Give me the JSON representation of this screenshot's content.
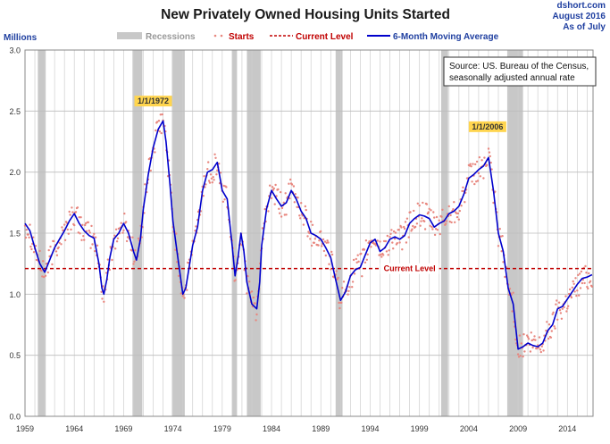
{
  "title": "New Privately Owned Housing Units Started",
  "site": "dshort.com",
  "date_line1": "August 2016",
  "date_line2": "As of July",
  "y_unit": "Millions",
  "legend": {
    "recessions": "Recessions",
    "starts": "Starts",
    "current_level": "Current Level",
    "moving_average": "6-Month Moving Average"
  },
  "source_note": {
    "line1": "Source: US. Bureau of the Census,",
    "line2": "seasonally adjusted annual rate"
  },
  "annotations": {
    "peak_1972": "1/1/1972",
    "peak_2006": "1/1/2006",
    "current_level": "Current Level"
  },
  "colors": {
    "title": "#1a1a1a",
    "accent_blue": "#1f3fa0",
    "moving_average": "#0000cc",
    "starts_dots": "#e8877f",
    "current_level": "#c00000",
    "recession_band": "#c8c8c8",
    "annotation_bg": "#ffd54f"
  },
  "chart_data": {
    "type": "line",
    "ylim": [
      0,
      3.0
    ],
    "y_ticks": [
      "0.0",
      "0.5",
      "1.0",
      "1.5",
      "2.0",
      "2.5",
      "3.0"
    ],
    "x_ticks": [
      "1959",
      "1964",
      "1969",
      "1974",
      "1979",
      "1984",
      "1989",
      "1994",
      "1999",
      "2004",
      "2009",
      "2014"
    ],
    "xlim": [
      1959.0,
      2016.6
    ],
    "grid": true,
    "current_level": 1.21,
    "recessions": [
      [
        1960.3,
        1961.1
      ],
      [
        1969.9,
        1970.9
      ],
      [
        1973.9,
        1975.2
      ],
      [
        1980.0,
        1980.5
      ],
      [
        1981.5,
        1982.9
      ],
      [
        1990.5,
        1991.2
      ],
      [
        2001.2,
        2001.9
      ],
      [
        2007.9,
        2009.5
      ]
    ],
    "series": [
      {
        "name": "6-Month Moving Average",
        "points": [
          [
            1959.0,
            1.58
          ],
          [
            1959.5,
            1.52
          ],
          [
            1960.0,
            1.38
          ],
          [
            1960.5,
            1.25
          ],
          [
            1961.0,
            1.18
          ],
          [
            1961.5,
            1.28
          ],
          [
            1962.0,
            1.38
          ],
          [
            1962.5,
            1.45
          ],
          [
            1963.0,
            1.52
          ],
          [
            1963.5,
            1.6
          ],
          [
            1964.0,
            1.66
          ],
          [
            1964.5,
            1.58
          ],
          [
            1965.0,
            1.52
          ],
          [
            1965.5,
            1.48
          ],
          [
            1966.0,
            1.46
          ],
          [
            1966.5,
            1.25
          ],
          [
            1966.8,
            1.05
          ],
          [
            1967.0,
            1.0
          ],
          [
            1967.3,
            1.12
          ],
          [
            1967.6,
            1.3
          ],
          [
            1968.0,
            1.45
          ],
          [
            1968.5,
            1.5
          ],
          [
            1969.0,
            1.58
          ],
          [
            1969.5,
            1.5
          ],
          [
            1970.0,
            1.35
          ],
          [
            1970.3,
            1.28
          ],
          [
            1970.7,
            1.45
          ],
          [
            1971.0,
            1.7
          ],
          [
            1971.5,
            1.98
          ],
          [
            1972.0,
            2.2
          ],
          [
            1972.5,
            2.35
          ],
          [
            1973.0,
            2.42
          ],
          [
            1973.3,
            2.25
          ],
          [
            1973.7,
            1.9
          ],
          [
            1974.0,
            1.6
          ],
          [
            1974.5,
            1.3
          ],
          [
            1975.0,
            1.0
          ],
          [
            1975.3,
            1.05
          ],
          [
            1975.7,
            1.25
          ],
          [
            1976.0,
            1.4
          ],
          [
            1976.5,
            1.55
          ],
          [
            1977.0,
            1.85
          ],
          [
            1977.5,
            2.0
          ],
          [
            1978.0,
            2.02
          ],
          [
            1978.5,
            2.08
          ],
          [
            1979.0,
            1.85
          ],
          [
            1979.5,
            1.78
          ],
          [
            1980.0,
            1.4
          ],
          [
            1980.3,
            1.15
          ],
          [
            1980.6,
            1.3
          ],
          [
            1980.9,
            1.5
          ],
          [
            1981.2,
            1.35
          ],
          [
            1981.5,
            1.1
          ],
          [
            1982.0,
            0.92
          ],
          [
            1982.5,
            0.88
          ],
          [
            1982.8,
            1.1
          ],
          [
            1983.0,
            1.4
          ],
          [
            1983.5,
            1.7
          ],
          [
            1984.0,
            1.85
          ],
          [
            1984.5,
            1.78
          ],
          [
            1985.0,
            1.72
          ],
          [
            1985.5,
            1.75
          ],
          [
            1986.0,
            1.85
          ],
          [
            1986.5,
            1.78
          ],
          [
            1987.0,
            1.68
          ],
          [
            1987.5,
            1.62
          ],
          [
            1988.0,
            1.5
          ],
          [
            1988.5,
            1.48
          ],
          [
            1989.0,
            1.45
          ],
          [
            1989.5,
            1.38
          ],
          [
            1990.0,
            1.3
          ],
          [
            1990.5,
            1.12
          ],
          [
            1991.0,
            0.95
          ],
          [
            1991.5,
            1.02
          ],
          [
            1992.0,
            1.15
          ],
          [
            1992.5,
            1.2
          ],
          [
            1993.0,
            1.22
          ],
          [
            1993.5,
            1.32
          ],
          [
            1994.0,
            1.42
          ],
          [
            1994.5,
            1.45
          ],
          [
            1995.0,
            1.35
          ],
          [
            1995.5,
            1.38
          ],
          [
            1996.0,
            1.45
          ],
          [
            1996.5,
            1.47
          ],
          [
            1997.0,
            1.45
          ],
          [
            1997.5,
            1.48
          ],
          [
            1998.0,
            1.58
          ],
          [
            1998.5,
            1.62
          ],
          [
            1999.0,
            1.65
          ],
          [
            1999.5,
            1.64
          ],
          [
            2000.0,
            1.62
          ],
          [
            2000.5,
            1.55
          ],
          [
            2001.0,
            1.58
          ],
          [
            2001.5,
            1.6
          ],
          [
            2002.0,
            1.66
          ],
          [
            2002.5,
            1.68
          ],
          [
            2003.0,
            1.72
          ],
          [
            2003.5,
            1.82
          ],
          [
            2004.0,
            1.95
          ],
          [
            2004.5,
            1.98
          ],
          [
            2005.0,
            2.02
          ],
          [
            2005.5,
            2.05
          ],
          [
            2006.0,
            2.12
          ],
          [
            2006.5,
            1.85
          ],
          [
            2007.0,
            1.5
          ],
          [
            2007.5,
            1.35
          ],
          [
            2008.0,
            1.05
          ],
          [
            2008.5,
            0.92
          ],
          [
            2009.0,
            0.55
          ],
          [
            2009.5,
            0.57
          ],
          [
            2010.0,
            0.6
          ],
          [
            2010.5,
            0.58
          ],
          [
            2011.0,
            0.57
          ],
          [
            2011.5,
            0.6
          ],
          [
            2012.0,
            0.7
          ],
          [
            2012.5,
            0.75
          ],
          [
            2013.0,
            0.88
          ],
          [
            2013.5,
            0.9
          ],
          [
            2014.0,
            0.96
          ],
          [
            2014.5,
            1.02
          ],
          [
            2015.0,
            1.08
          ],
          [
            2015.5,
            1.13
          ],
          [
            2016.0,
            1.14
          ],
          [
            2016.5,
            1.16
          ]
        ]
      }
    ]
  }
}
